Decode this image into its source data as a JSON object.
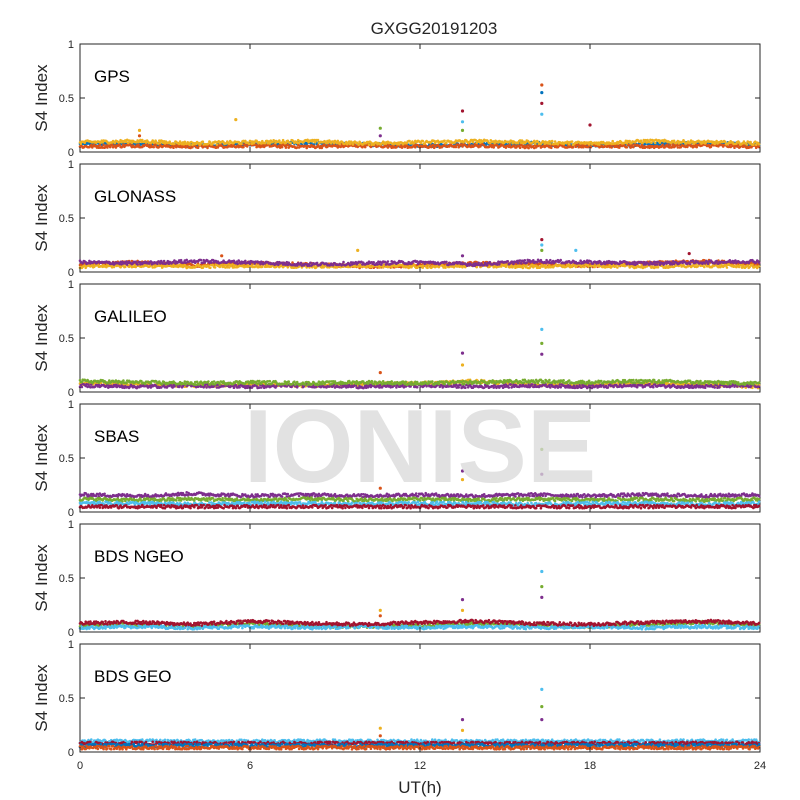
{
  "chart_data": {
    "type": "scatter",
    "title": "GXGG20191203",
    "xlabel": "UT(h)",
    "ylabel": "S4 Index",
    "xlim": [
      0,
      24
    ],
    "ylim": [
      0,
      1
    ],
    "xticks": [
      0,
      6,
      12,
      18,
      24
    ],
    "yticks": [
      0,
      0.5,
      1
    ],
    "ytick_labels": [
      "0",
      "0.5",
      "1"
    ],
    "grid": false,
    "watermark": "IONISE",
    "colors": [
      "#0072BD",
      "#D95319",
      "#EDB120",
      "#7E2F8E",
      "#77AC30",
      "#4DBEEE",
      "#A2142F"
    ],
    "panels": [
      {
        "label": "GPS",
        "series": [
          {
            "x": [
              0,
              2,
              4,
              6,
              8,
              10,
              12,
              14,
              16,
              18,
              20,
              22,
              24
            ],
            "y": [
              0.07,
              0.08,
              0.06,
              0.07,
              0.08,
              0.07,
              0.06,
              0.07,
              0.08,
              0.06,
              0.07,
              0.08,
              0.07
            ]
          },
          {
            "x": [
              0,
              2,
              4,
              6,
              8,
              10,
              12,
              14,
              16,
              18,
              20,
              22,
              24
            ],
            "y": [
              0.05,
              0.06,
              0.05,
              0.06,
              0.05,
              0.06,
              0.05,
              0.06,
              0.05,
              0.06,
              0.05,
              0.06,
              0.05
            ]
          },
          {
            "x": [
              0,
              2,
              4,
              6,
              8,
              10,
              12,
              14,
              16,
              18,
              20,
              22,
              24
            ],
            "y": [
              0.09,
              0.1,
              0.08,
              0.09,
              0.1,
              0.08,
              0.09,
              0.1,
              0.09,
              0.08,
              0.1,
              0.09,
              0.08
            ]
          }
        ],
        "spikes": [
          {
            "x": 2.1,
            "y": [
              0.15,
              0.2
            ]
          },
          {
            "x": 5.5,
            "y": [
              0.3
            ]
          },
          {
            "x": 10.6,
            "y": [
              0.15,
              0.22
            ]
          },
          {
            "x": 13.5,
            "y": [
              0.2,
              0.28,
              0.38
            ]
          },
          {
            "x": 16.3,
            "y": [
              0.35,
              0.45,
              0.55,
              0.62
            ]
          },
          {
            "x": 18.0,
            "y": [
              0.25
            ]
          }
        ]
      },
      {
        "label": "GLONASS",
        "series": [
          {
            "x": [
              0,
              2,
              4,
              6,
              8,
              10,
              12,
              14,
              16,
              18,
              20,
              22,
              24
            ],
            "y": [
              0.07,
              0.09,
              0.06,
              0.08,
              0.07,
              0.05,
              0.06,
              0.08,
              0.07,
              0.06,
              0.08,
              0.1,
              0.07
            ]
          },
          {
            "x": [
              0,
              2,
              4,
              6,
              8,
              10,
              12,
              14,
              16,
              18,
              20,
              22,
              24
            ],
            "y": [
              0.05,
              0.06,
              0.05,
              0.06,
              0.05,
              0.06,
              0.05,
              0.06,
              0.05,
              0.06,
              0.05,
              0.06,
              0.05
            ]
          },
          {
            "x": [
              0,
              2,
              4,
              6,
              8,
              10,
              12,
              14,
              16,
              18,
              20,
              22,
              24
            ],
            "y": [
              0.09,
              0.08,
              0.1,
              0.09,
              0.07,
              0.08,
              0.09,
              0.07,
              0.1,
              0.09,
              0.08,
              0.09,
              0.1
            ]
          }
        ],
        "spikes": [
          {
            "x": 5.0,
            "y": [
              0.15
            ]
          },
          {
            "x": 9.8,
            "y": [
              0.2
            ]
          },
          {
            "x": 13.5,
            "y": [
              0.15
            ]
          },
          {
            "x": 16.3,
            "y": [
              0.2,
              0.25,
              0.3
            ]
          },
          {
            "x": 17.5,
            "y": [
              0.2
            ]
          },
          {
            "x": 21.5,
            "y": [
              0.17
            ]
          }
        ]
      },
      {
        "label": "GALILEO",
        "series": [
          {
            "x": [
              0,
              2,
              4,
              6,
              8,
              10,
              12,
              14,
              16,
              18,
              20,
              22,
              24
            ],
            "y": [
              0.08,
              0.07,
              0.06,
              0.07,
              0.06,
              0.07,
              0.08,
              0.1,
              0.07,
              0.06,
              0.08,
              0.07,
              0.05
            ]
          },
          {
            "x": [
              0,
              2,
              4,
              6,
              8,
              10,
              12,
              14,
              16,
              18,
              20,
              22,
              24
            ],
            "y": [
              0.06,
              0.05,
              0.06,
              0.05,
              0.06,
              0.05,
              0.06,
              0.05,
              0.06,
              0.05,
              0.06,
              0.05,
              0.06
            ]
          },
          {
            "x": [
              0,
              2,
              4,
              6,
              8,
              10,
              12,
              14,
              16,
              18,
              20,
              22,
              24
            ],
            "y": [
              0.1,
              0.09,
              0.08,
              0.09,
              0.08,
              0.09,
              0.08,
              0.09,
              0.1,
              0.09,
              0.1,
              0.09,
              0.08
            ]
          }
        ],
        "spikes": [
          {
            "x": 10.6,
            "y": [
              0.18
            ]
          },
          {
            "x": 13.5,
            "y": [
              0.25,
              0.36
            ]
          },
          {
            "x": 16.3,
            "y": [
              0.35,
              0.45,
              0.58
            ]
          }
        ]
      },
      {
        "label": "SBAS",
        "series": [
          {
            "x": [
              0,
              2,
              4,
              6,
              8,
              10,
              12,
              14,
              16,
              18,
              20,
              22,
              24
            ],
            "y": [
              0.16,
              0.15,
              0.17,
              0.15,
              0.16,
              0.15,
              0.16,
              0.15,
              0.16,
              0.15,
              0.16,
              0.15,
              0.16
            ]
          },
          {
            "x": [
              0,
              2,
              4,
              6,
              8,
              10,
              12,
              14,
              16,
              18,
              20,
              22,
              24
            ],
            "y": [
              0.12,
              0.11,
              0.12,
              0.11,
              0.12,
              0.11,
              0.12,
              0.11,
              0.12,
              0.11,
              0.12,
              0.11,
              0.12
            ]
          },
          {
            "x": [
              0,
              2,
              4,
              6,
              8,
              10,
              12,
              14,
              16,
              18,
              20,
              22,
              24
            ],
            "y": [
              0.08,
              0.08,
              0.07,
              0.08,
              0.08,
              0.07,
              0.08,
              0.08,
              0.07,
              0.08,
              0.08,
              0.07,
              0.08
            ]
          },
          {
            "x": [
              0,
              2,
              4,
              6,
              8,
              10,
              12,
              14,
              16,
              18,
              20,
              22,
              24
            ],
            "y": [
              0.05,
              0.05,
              0.05,
              0.05,
              0.05,
              0.05,
              0.05,
              0.05,
              0.05,
              0.05,
              0.05,
              0.05,
              0.05
            ]
          }
        ],
        "spikes": [
          {
            "x": 10.6,
            "y": [
              0.22
            ]
          },
          {
            "x": 13.5,
            "y": [
              0.3,
              0.38
            ]
          },
          {
            "x": 16.3,
            "y": [
              0.35,
              0.58
            ]
          }
        ]
      },
      {
        "label": "BDS NGEO",
        "series": [
          {
            "x": [
              0,
              2,
              4,
              6,
              8,
              10,
              12,
              14,
              16,
              18,
              20,
              22,
              24
            ],
            "y": [
              0.06,
              0.07,
              0.05,
              0.08,
              0.06,
              0.05,
              0.06,
              0.08,
              0.06,
              0.05,
              0.07,
              0.09,
              0.06
            ]
          },
          {
            "x": [
              0,
              2,
              4,
              6,
              8,
              10,
              12,
              14,
              16,
              18,
              20,
              22,
              24
            ],
            "y": [
              0.04,
              0.05,
              0.04,
              0.05,
              0.04,
              0.05,
              0.04,
              0.05,
              0.04,
              0.05,
              0.04,
              0.05,
              0.04
            ]
          },
          {
            "x": [
              0,
              2,
              4,
              6,
              8,
              10,
              12,
              14,
              16,
              18,
              20,
              22,
              24
            ],
            "y": [
              0.08,
              0.09,
              0.07,
              0.1,
              0.08,
              0.07,
              0.09,
              0.1,
              0.08,
              0.07,
              0.09,
              0.1,
              0.08
            ]
          }
        ],
        "spikes": [
          {
            "x": 10.6,
            "y": [
              0.15,
              0.2
            ]
          },
          {
            "x": 13.5,
            "y": [
              0.2,
              0.3
            ]
          },
          {
            "x": 16.3,
            "y": [
              0.32,
              0.42,
              0.56
            ]
          }
        ]
      },
      {
        "label": "BDS GEO",
        "series": [
          {
            "x": [
              0,
              2,
              4,
              6,
              8,
              10,
              12,
              14,
              16,
              18,
              20,
              22,
              24
            ],
            "y": [
              0.1,
              0.1,
              0.1,
              0.1,
              0.1,
              0.1,
              0.1,
              0.1,
              0.1,
              0.1,
              0.1,
              0.1,
              0.1
            ]
          },
          {
            "x": [
              0,
              2,
              4,
              6,
              8,
              10,
              12,
              14,
              16,
              18,
              20,
              22,
              24
            ],
            "y": [
              0.08,
              0.08,
              0.08,
              0.08,
              0.08,
              0.08,
              0.08,
              0.08,
              0.08,
              0.08,
              0.08,
              0.08,
              0.08
            ]
          },
          {
            "x": [
              0,
              2,
              4,
              6,
              8,
              10,
              12,
              14,
              16,
              18,
              20,
              22,
              24
            ],
            "y": [
              0.06,
              0.06,
              0.06,
              0.06,
              0.06,
              0.06,
              0.06,
              0.06,
              0.06,
              0.06,
              0.06,
              0.06,
              0.06
            ]
          },
          {
            "x": [
              0,
              2,
              4,
              6,
              8,
              10,
              12,
              14,
              16,
              18,
              20,
              22,
              24
            ],
            "y": [
              0.04,
              0.04,
              0.04,
              0.04,
              0.04,
              0.04,
              0.04,
              0.04,
              0.04,
              0.04,
              0.04,
              0.04,
              0.04
            ]
          }
        ],
        "spikes": [
          {
            "x": 10.6,
            "y": [
              0.15,
              0.22
            ]
          },
          {
            "x": 13.5,
            "y": [
              0.2,
              0.3
            ]
          },
          {
            "x": 16.3,
            "y": [
              0.3,
              0.42,
              0.58
            ]
          }
        ]
      }
    ]
  }
}
